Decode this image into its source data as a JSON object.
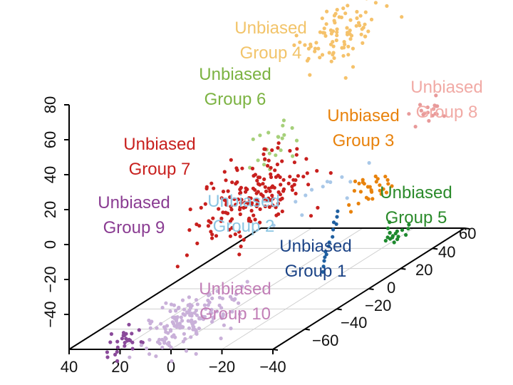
{
  "chart_data": {
    "type": "scatter3d",
    "title": "",
    "axes": {
      "z": {
        "range": [
          -60,
          80
        ],
        "ticks": [
          "80",
          "60",
          "40",
          "20",
          "0",
          "−20",
          "−40"
        ]
      },
      "x": {
        "range": [
          -40,
          40
        ],
        "ticks": [
          "40",
          "20",
          "0",
          "−20",
          "−40"
        ]
      },
      "y": {
        "range": [
          -60,
          60
        ],
        "ticks": [
          "60",
          "40",
          "20",
          "0",
          "−20",
          "−40",
          "−60"
        ]
      }
    },
    "grid": true,
    "series": [
      {
        "name": "Unbiased Group 1",
        "line1": "Unbiased",
        "line2": "Group 1",
        "color": "#1f5fa0",
        "labelColor": "#1b4386",
        "n": 14,
        "points": [
          [
            -10,
            26,
            23
          ],
          [
            -12,
            22,
            17
          ],
          [
            -14,
            14,
            10
          ],
          [
            -13,
            18,
            14
          ],
          [
            -16,
            10,
            7
          ],
          [
            -9,
            30,
            27
          ],
          [
            -11,
            24,
            20
          ],
          [
            -15,
            12,
            9
          ],
          [
            -12,
            20,
            15
          ],
          [
            -10,
            28,
            25
          ],
          [
            -17,
            8,
            5
          ],
          [
            -13,
            16,
            12
          ],
          [
            -11,
            26,
            22
          ],
          [
            -14,
            15,
            11
          ]
        ]
      },
      {
        "name": "Unbiased Group 2",
        "line1": "Unbiased",
        "line2": "Group 2",
        "color": "#a9c8e8",
        "labelColor": "#8cc6e3",
        "n": 12,
        "center": [
          -10,
          20,
          44
        ],
        "spread": [
          6,
          14,
          5
        ]
      },
      {
        "name": "Unbiased Group 3",
        "line1": "Unbiased",
        "line2": "Group 3",
        "color": "#e8820c",
        "labelColor": "#e8820c",
        "n": 30,
        "center": [
          -20,
          35,
          38
        ],
        "spread": [
          3,
          6,
          4
        ]
      },
      {
        "name": "Unbiased Group 4",
        "line1": "Unbiased",
        "line2": "Group 4",
        "color": "#f5c26b",
        "labelColor": "#f2c46a",
        "n": 90,
        "center": [
          -22,
          10,
          140
        ],
        "spread": [
          5,
          10,
          8
        ]
      },
      {
        "name": "Unbiased Group 5",
        "line1": "Unbiased",
        "line2": "Group 5",
        "color": "#1e8a2e",
        "labelColor": "#2a8a2a",
        "n": 18,
        "center": [
          -27,
          35,
          10
        ],
        "spread": [
          2,
          4,
          2
        ]
      },
      {
        "name": "Unbiased Group 6",
        "line1": "Unbiased",
        "line2": "Group 6",
        "color": "#a6d07a",
        "labelColor": "#7cb342",
        "n": 22,
        "center": [
          8,
          15,
          73
        ],
        "spread": [
          5,
          8,
          8
        ]
      },
      {
        "name": "Unbiased Group 7",
        "line1": "Unbiased",
        "line2": "Group 7",
        "color": "#c8201e",
        "labelColor": "#c8201e",
        "n": 180,
        "center": [
          10,
          10,
          48
        ],
        "spread": [
          7,
          14,
          10
        ]
      },
      {
        "name": "Unbiased Group 8",
        "line1": "Unbiased",
        "line2": "Group 8",
        "color": "#e89a9a",
        "labelColor": "#f1aaa5",
        "n": 18,
        "center": [
          -24,
          65,
          63
        ],
        "spread": [
          2,
          4,
          3
        ]
      },
      {
        "name": "Unbiased Group 9",
        "line1": "Unbiased",
        "line2": "Group 9",
        "color": "#8a4a9a",
        "labelColor": "#8a3c92",
        "n": 28,
        "center": [
          30,
          -40,
          -8
        ],
        "spread": [
          3,
          4,
          4
        ]
      },
      {
        "name": "Unbiased Group 10",
        "line1": "Unbiased",
        "line2": "Group 10",
        "color": "#c9b0d9",
        "labelColor": "#c27fb7",
        "n": 150,
        "center": [
          24,
          -10,
          -13
        ],
        "spread": [
          5,
          13,
          6
        ]
      }
    ]
  }
}
